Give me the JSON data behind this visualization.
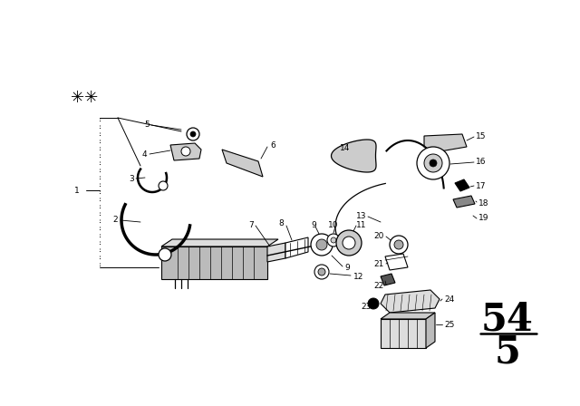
{
  "bg_color": "#ffffff",
  "fig_width": 6.4,
  "fig_height": 4.48,
  "dpi": 100,
  "page_top": "54",
  "page_bot": "5"
}
